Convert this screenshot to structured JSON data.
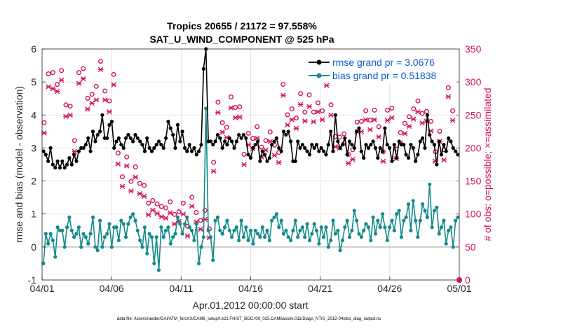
{
  "chart_data": {
    "type": "line",
    "title": "Tropics 20655 / 21172 = 97.558%",
    "subtitle": "SAT_U_WIND_COMPONENT @ 525 hPa",
    "xlabel": "Apr.01,2012 00:00:00 start",
    "ylabel": "rmse and bias (model - observation)",
    "y2label": "# of obs: o=possible; ×=assimilated",
    "footer": "data file: /Users/raeder/DAI/ATM_forcXX/CAM6_setup/f.e21.FHIST_BGC.f09_025.CAM6assim.011/Diags_NTrS_2012-04/obs_diag_output.nc",
    "x_tick_labels": [
      "04/01",
      "04/06",
      "04/11",
      "04/16",
      "04/21",
      "04/26",
      "05/01"
    ],
    "x_tick_days": [
      0,
      5,
      10,
      15,
      20,
      25,
      30
    ],
    "xlim": [
      0,
      30
    ],
    "ylim": [
      -1,
      6
    ],
    "y_ticks": [
      -1,
      0,
      1,
      2,
      3,
      4,
      5,
      6
    ],
    "y2lim": [
      0,
      350
    ],
    "y2_ticks": [
      0,
      50,
      100,
      150,
      200,
      250,
      300,
      350
    ],
    "colors": {
      "rmse": "#000000",
      "bias": "#138a8a",
      "obs": "#d4145a",
      "zero_line": "#b0b0b0",
      "legend_text": "#0b5bd3"
    },
    "series": [
      {
        "name": "rmse grand pr = 3.0676",
        "key": "rmse",
        "values": [
          2.9,
          2.8,
          2.6,
          3.0,
          2.5,
          2.4,
          2.6,
          2.4,
          2.6,
          2.4,
          2.5,
          2.7,
          2.5,
          2.8,
          2.6,
          2.9,
          3.0,
          3.0,
          3.1,
          3.3,
          2.9,
          3.5,
          3.2,
          3.4,
          3.5,
          4.0,
          3.3,
          3.3,
          3.7,
          3.8,
          3.0,
          3.2,
          3.3,
          3.1,
          3.0,
          3.3,
          3.4,
          3.3,
          3.2,
          3.4,
          3.3,
          3.2,
          3.1,
          2.9,
          3.3,
          3.0,
          2.9,
          3.0,
          3.1,
          3.2,
          3.1,
          3.0,
          3.3,
          3.8,
          3.6,
          3.4,
          3.0,
          3.7,
          3.2,
          3.5,
          3.0,
          2.9,
          3.1,
          2.9,
          3.0,
          2.8,
          2.9,
          3.1,
          5.4,
          6.0,
          3.2,
          3.2,
          3.1,
          3.2,
          3.4,
          3.3,
          3.0,
          3.2,
          3.1,
          3.3,
          3.2,
          3.0,
          3.2,
          3.4,
          3.3,
          3.4,
          3.3,
          2.8,
          2.7,
          3.0,
          3.1,
          3.2,
          2.6,
          2.9,
          2.8,
          2.6,
          2.7,
          3.1,
          3.2,
          3.3,
          3.0,
          2.9,
          3.5,
          3.4,
          3.5,
          3.2,
          2.6,
          2.6,
          3.2,
          3.0,
          3.1,
          3.0,
          2.9,
          2.8,
          3.1,
          3.0,
          3.1,
          2.9,
          3.0,
          2.9,
          2.8,
          3.1,
          3.5,
          2.9,
          4.0,
          3.2,
          3.0,
          3.1,
          3.3,
          2.8,
          3.2,
          3.1,
          3.0,
          3.5,
          3.6,
          2.9,
          2.7,
          3.1,
          3.0,
          3.1,
          3.2,
          3.0,
          2.7,
          3.0,
          2.9,
          3.6,
          3.1,
          3.0,
          2.6,
          3.1,
          2.7,
          3.2,
          3.1,
          3.1,
          2.8,
          2.7,
          3.1,
          3.0,
          2.6,
          2.8,
          3.2,
          3.3,
          3.0,
          4.0,
          3.4,
          3.2,
          3.1,
          2.5,
          3.2,
          2.8,
          3.1,
          2.9,
          3.3,
          3.2,
          3.0,
          2.9,
          2.8
        ]
      },
      {
        "name": "bias grand pr = 0.51838",
        "key": "bias",
        "values": [
          -0.5,
          0.4,
          0.1,
          0.4,
          0.2,
          -0.3,
          0.6,
          0.5,
          0.5,
          0.0,
          0.6,
          0.9,
          0.5,
          0.3,
          0.4,
          0.6,
          0.0,
          0.4,
          0.3,
          0.1,
          0.4,
          0.9,
          0.0,
          -0.1,
          0.8,
          0.0,
          0.3,
          0.4,
          0.7,
          0.0,
          0.6,
          0.6,
          0.2,
          0.8,
          0.7,
          0.3,
          0.7,
          0.9,
          1.0,
          0.8,
          0.5,
          0.2,
          0.0,
          0.6,
          -0.2,
          0.4,
          0.3,
          -0.5,
          0.3,
          -0.7,
          0.6,
          0.3,
          0.5,
          0.6,
          0.1,
          0.3,
          0.4,
          0.9,
          0.7,
          0.4,
          0.7,
          0.9,
          0.6,
          0.5,
          0.2,
          0.7,
          -0.5,
          0.0,
          0.3,
          4.2,
          0.5,
          0.3,
          -0.4,
          0.8,
          0.9,
          0.5,
          0.4,
          0.6,
          0.8,
          0.5,
          0.3,
          0.5,
          0.6,
          0.2,
          0.8,
          0.3,
          0.6,
          0.2,
          0.5,
          0.1,
          0.5,
          0.4,
          0.3,
          0.6,
          0.3,
          0.5,
          0.2,
          0.8,
          0.9,
          1.0,
          0.6,
          0.8,
          0.4,
          0.5,
          0.3,
          0.2,
          0.5,
          0.8,
          0.3,
          0.5,
          0.6,
          0.3,
          0.7,
          0.2,
          0.4,
          0.7,
          0.5,
          0.1,
          0.6,
          0.3,
          0.6,
          0.0,
          0.2,
          0.8,
          0.4,
          0.5,
          -0.1,
          0.2,
          0.6,
          0.8,
          0.3,
          0.5,
          1.1,
          0.8,
          0.4,
          0.3,
          0.5,
          0.7,
          0.6,
          0.2,
          0.9,
          0.4,
          0.8,
          0.6,
          1.0,
          0.6,
          0.2,
          0.6,
          0.8,
          0.5,
          1.0,
          1.1,
          0.3,
          0.8,
          0.9,
          1.3,
          0.5,
          1.4,
          0.8,
          0.3,
          0.8,
          1.3,
          1.1,
          0.9,
          1.9,
          0.6,
          1.1,
          1.2,
          0.4,
          0.6,
          0.8,
          0.1,
          0.5,
          0.6,
          0.0,
          0.8,
          0.9
        ]
      },
      {
        "name": "# of obs possible",
        "key": "possible",
        "values": [
          232,
          306,
          308,
          290,
          311,
          259,
          257,
          205,
          308,
          314,
          269,
          275,
          287,
          325,
          280,
          265,
          305,
          186,
          150,
          180,
          143,
          165,
          140,
          137,
          110,
          114,
          109,
          105,
          103,
          112,
          93,
          97,
          110,
          75,
          119,
          96,
          84,
          99,
          71,
          172,
          263,
          232,
          225,
          271,
          255,
          256,
          184,
          216,
          208,
          226,
          195,
          205,
          218,
          198,
          187,
          290,
          244,
          253,
          239,
          276,
          248,
          274,
          248,
          262,
          250,
          304,
          259,
          211,
          210,
          215,
          184,
          191,
          233,
          234,
          250,
          236,
          251,
          226,
          188,
          251,
          254,
          192,
          217,
          231,
          241,
          253,
          265,
          246,
          249,
          234,
          188,
          219,
          191,
          285,
          250
        ]
      },
      {
        "name": "# of obs assimilated",
        "key": "assimilated",
        "values": [
          226,
          296,
          293,
          289,
          306,
          251,
          253,
          198,
          301,
          308,
          262,
          271,
          276,
          322,
          276,
          258,
          299,
          179,
          145,
          176,
          138,
          159,
          134,
          130,
          102,
          109,
          104,
          99,
          97,
          105,
          88,
          92,
          103,
          70,
          115,
          91,
          80,
          95,
          67,
          168,
          257,
          227,
          219,
          264,
          249,
          250,
          178,
          208,
          202,
          218,
          190,
          200,
          213,
          192,
          181,
          283,
          238,
          246,
          233,
          269,
          244,
          266,
          243,
          258,
          246,
          298,
          253,
          205,
          203,
          209,
          180,
          186,
          228,
          228,
          246,
          231,
          246,
          220,
          183,
          245,
          249,
          187,
          211,
          225,
          236,
          247,
          258,
          241,
          244,
          229,
          183,
          213,
          185,
          281,
          245
        ]
      }
    ],
    "samples_per_day_rmse_bias": 6,
    "samples_per_day_obs": 3.2
  }
}
